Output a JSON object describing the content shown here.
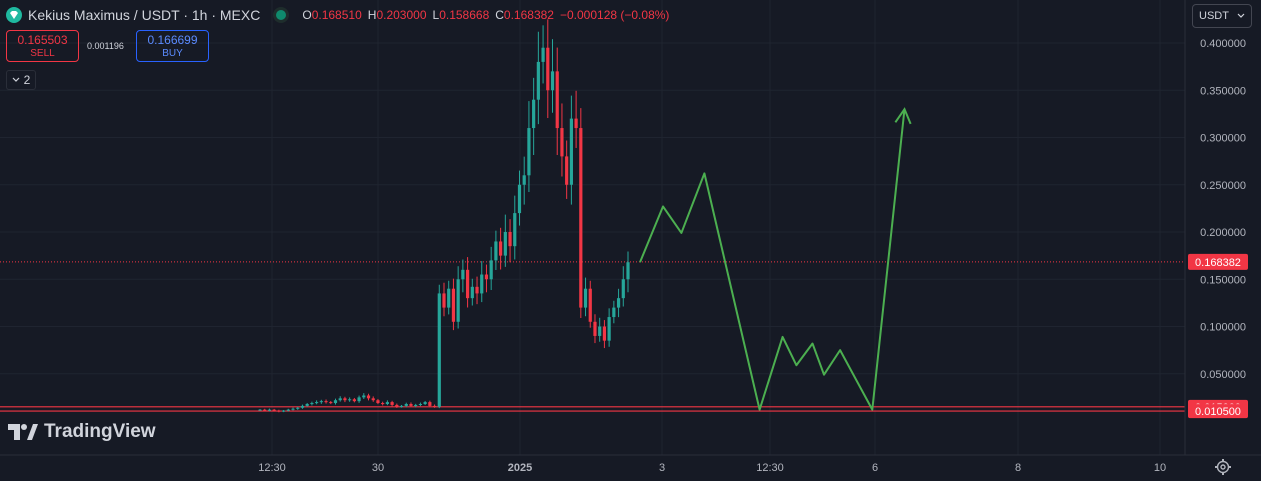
{
  "header": {
    "symbol": "Kekius Maximus / USDT · 1h · MEXC",
    "o_label": "O",
    "o": "0.168510",
    "h_label": "H",
    "h": "0.203000",
    "l_label": "L",
    "l": "0.158668",
    "c_label": "C",
    "c": "0.168382",
    "change": "−0.000128 (−0.08%)"
  },
  "trade": {
    "sell_price": "0.165503",
    "sell_label": "SELL",
    "spread": "0.001196",
    "buy_price": "0.166699",
    "buy_label": "BUY"
  },
  "indicators_count": "2",
  "currency": "USDT",
  "brand": "TradingView",
  "colors": {
    "up": "#26a69a",
    "down": "#f23645",
    "projection": "#4caf50",
    "background": "#161a25",
    "grid": "#1f2430"
  },
  "chart_data": {
    "type": "candlestick",
    "title": "Kekius Maximus / USDT · 1h · MEXC",
    "y_axis": {
      "ylim": [
        0,
        0.42
      ],
      "ticks": [
        "0.400000",
        "0.350000",
        "0.300000",
        "0.250000",
        "0.200000",
        "0.150000",
        "0.100000",
        "0.050000"
      ],
      "position": "right"
    },
    "x_axis": {
      "ticks": [
        "12:30",
        "30",
        "2025",
        "3",
        "12:30",
        "6",
        "8",
        "10"
      ]
    },
    "last_price": {
      "value": 0.168382,
      "label": "0.168382"
    },
    "horizontal_lines": [
      {
        "value": 0.015,
        "label": "0.015000"
      },
      {
        "value": 0.0105,
        "label": "0.010500"
      }
    ],
    "candles_hint": "approximate hourly OHLC sequence",
    "closes": [
      0.012,
      0.011,
      0.012,
      0.011,
      0.01,
      0.011,
      0.012,
      0.013,
      0.014,
      0.016,
      0.018,
      0.019,
      0.02,
      0.021,
      0.02,
      0.019,
      0.022,
      0.024,
      0.022,
      0.023,
      0.021,
      0.025,
      0.027,
      0.024,
      0.022,
      0.019,
      0.018,
      0.02,
      0.017,
      0.015,
      0.016,
      0.018,
      0.016,
      0.017,
      0.018,
      0.02,
      0.016,
      0.015,
      0.135,
      0.12,
      0.14,
      0.105,
      0.15,
      0.16,
      0.13,
      0.142,
      0.135,
      0.155,
      0.15,
      0.17,
      0.19,
      0.175,
      0.2,
      0.185,
      0.22,
      0.25,
      0.26,
      0.31,
      0.34,
      0.38,
      0.395,
      0.35,
      0.37,
      0.31,
      0.28,
      0.25,
      0.32,
      0.31,
      0.12,
      0.14,
      0.105,
      0.09,
      0.1,
      0.085,
      0.11,
      0.12,
      0.13,
      0.15,
      0.168
    ],
    "projection": [
      {
        "x": 0.0,
        "y": 0.168
      },
      {
        "x": 1.0,
        "y": 0.227
      },
      {
        "x": 1.8,
        "y": 0.199
      },
      {
        "x": 2.8,
        "y": 0.262
      },
      {
        "x": 5.2,
        "y": 0.012
      },
      {
        "x": 6.2,
        "y": 0.089
      },
      {
        "x": 6.8,
        "y": 0.059
      },
      {
        "x": 7.5,
        "y": 0.082
      },
      {
        "x": 8.0,
        "y": 0.049
      },
      {
        "x": 8.7,
        "y": 0.075
      },
      {
        "x": 10.1,
        "y": 0.012
      },
      {
        "x": 11.5,
        "y": 0.33
      }
    ]
  }
}
